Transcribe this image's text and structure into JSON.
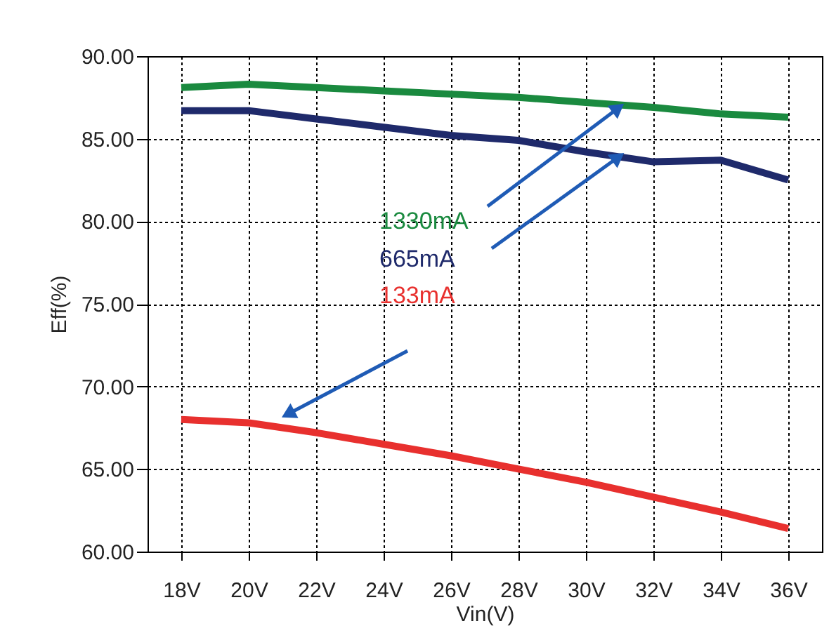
{
  "chart_data": {
    "type": "line",
    "xlabel": "Vin(V)",
    "ylabel": "Eff(%)",
    "categories": [
      "18V",
      "20V",
      "22V",
      "24V",
      "26V",
      "28V",
      "30V",
      "32V",
      "34V",
      "36V"
    ],
    "series": [
      {
        "name": "1330mA",
        "color": "#1a8a3f",
        "values": [
          88.1,
          88.3,
          88.1,
          87.9,
          87.7,
          87.5,
          87.2,
          86.9,
          86.5,
          86.3
        ]
      },
      {
        "name": "665mA",
        "color": "#1f2a6b",
        "values": [
          86.7,
          86.7,
          86.2,
          85.7,
          85.2,
          84.9,
          84.2,
          83.6,
          83.7,
          82.5
        ]
      },
      {
        "name": "133mA",
        "color": "#e8302e",
        "values": [
          68.0,
          67.8,
          67.2,
          66.5,
          65.8,
          65.0,
          64.2,
          63.3,
          62.4,
          61.4
        ]
      }
    ],
    "ylim": [
      60,
      90
    ],
    "yticks": [
      {
        "value": 60,
        "label": "60.00"
      },
      {
        "value": 65,
        "label": "65.00"
      },
      {
        "value": 70,
        "label": "70.00"
      },
      {
        "value": 75,
        "label": "75.00"
      },
      {
        "value": 80,
        "label": "80.00"
      },
      {
        "value": 85,
        "label": "85.00"
      },
      {
        "value": 90,
        "label": "90.00"
      }
    ],
    "grid": true,
    "legend": false,
    "marker": "none",
    "line_style": "solid"
  }
}
